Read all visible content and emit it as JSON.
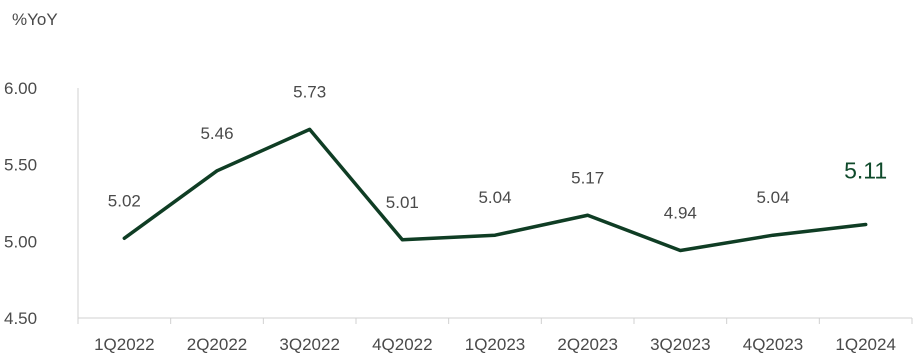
{
  "chart_data": {
    "type": "line",
    "ylabel": "%YoY",
    "categories": [
      "1Q2022",
      "2Q2022",
      "3Q2022",
      "4Q2022",
      "1Q2023",
      "2Q2023",
      "3Q2023",
      "4Q2023",
      "1Q2024"
    ],
    "series": [
      {
        "values": [
          5.02,
          5.46,
          5.73,
          5.01,
          5.04,
          5.17,
          4.94,
          5.04,
          5.11
        ],
        "labels": [
          "5.02",
          "5.46",
          "5.73",
          "5.01",
          "5.04",
          "5.17",
          "4.94",
          "5.04",
          "5.11"
        ],
        "color": "#0f3d24"
      }
    ],
    "ylim": [
      4.5,
      6.0
    ],
    "yticks": [
      4.5,
      5.0,
      5.5,
      6.0
    ],
    "ytick_labels": [
      "4.50",
      "5.00",
      "5.50",
      "6.00"
    ],
    "grid": false,
    "legend": "none",
    "last_label_color": "#0f4a2b"
  }
}
